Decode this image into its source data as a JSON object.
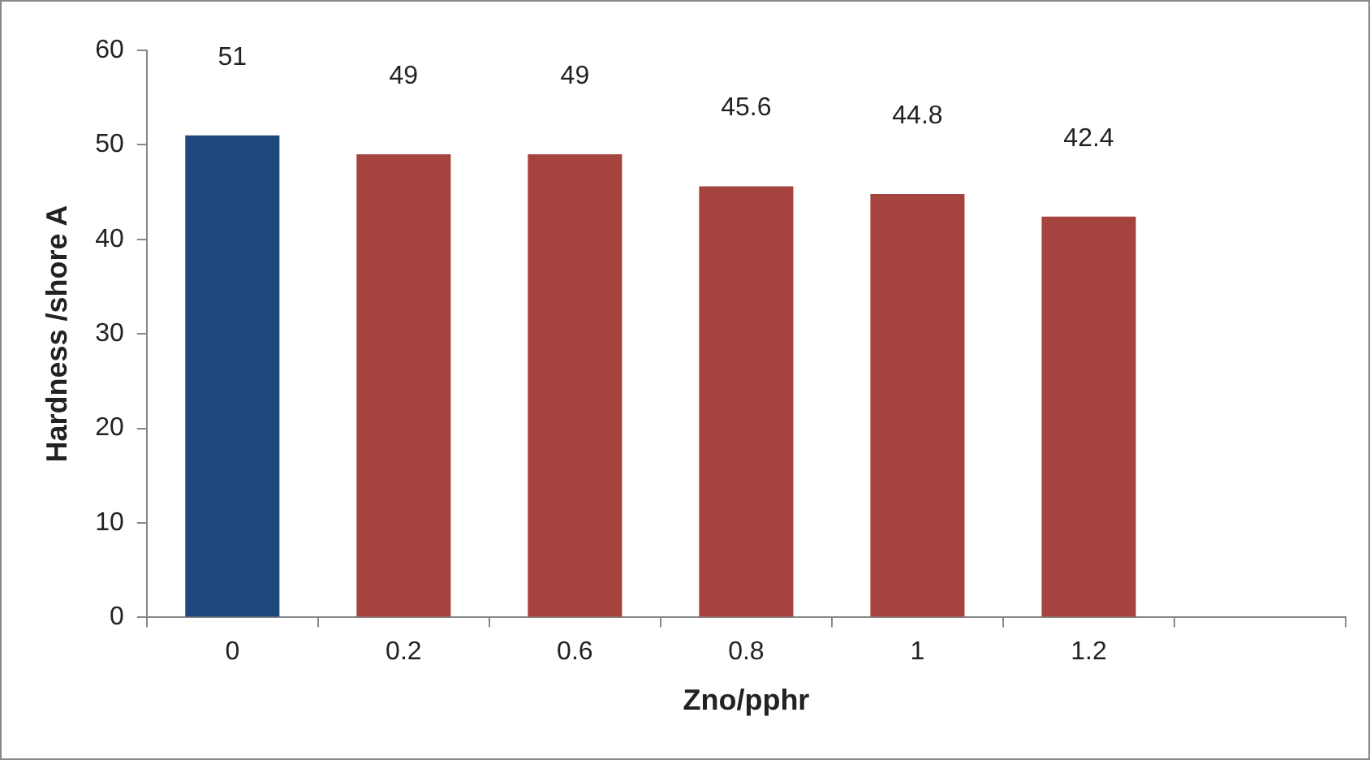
{
  "chart_data": {
    "type": "bar",
    "xlabel": "Zno/pphr",
    "ylabel": "Hardness /shore A",
    "categories": [
      "0",
      "0.2",
      "0.6",
      "0.8",
      "1",
      "1.2",
      null
    ],
    "values": [
      51,
      49,
      49,
      45.6,
      44.8,
      42.4,
      null
    ],
    "colors": [
      "#1f497d",
      "#a5443f",
      "#a5443f",
      "#a5443f",
      "#a5443f",
      "#a5443f",
      "#a5443f"
    ],
    "ylim": [
      0,
      60
    ],
    "yticks": [
      0,
      10,
      20,
      30,
      40,
      50,
      60
    ],
    "grid": false,
    "legend": false,
    "data_labels": true
  }
}
